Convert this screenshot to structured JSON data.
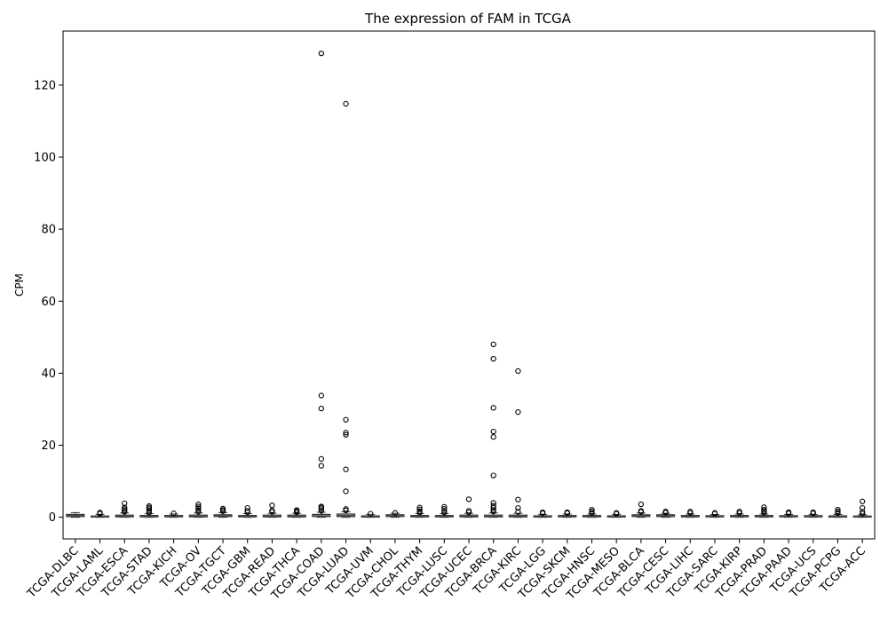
{
  "chart_data": {
    "type": "box",
    "title": "The expression of FAM in TCGA",
    "xlabel": "",
    "ylabel": "CPM",
    "ylim": [
      -6,
      135
    ],
    "yticks": [
      0,
      20,
      40,
      60,
      80,
      100,
      120
    ],
    "grid": false,
    "categories": [
      "TCGA-DLBC",
      "TCGA-LAML",
      "TCGA-ESCA",
      "TCGA-STAD",
      "TCGA-KICH",
      "TCGA-OV",
      "TCGA-TGCT",
      "TCGA-GBM",
      "TCGA-READ",
      "TCGA-THCA",
      "TCGA-COAD",
      "TCGA-LUAD",
      "TCGA-UVM",
      "TCGA-CHOL",
      "TCGA-THYM",
      "TCGA-LUSC",
      "TCGA-UCEC",
      "TCGA-BRCA",
      "TCGA-KIRC",
      "TCGA-LGG",
      "TCGA-SKCM",
      "TCGA-HNSC",
      "TCGA-MESO",
      "TCGA-BLCA",
      "TCGA-CESC",
      "TCGA-LIHC",
      "TCGA-SARC",
      "TCGA-KIRP",
      "TCGA-PRAD",
      "TCGA-PAAD",
      "TCGA-UCS",
      "TCGA-PCPG",
      "TCGA-ACC"
    ],
    "boxes": [
      {
        "q1": 0.2,
        "median": 0.5,
        "q3": 0.8,
        "whisker_low": 0.0,
        "whisker_high": 1.3,
        "outliers": []
      },
      {
        "q1": 0.05,
        "median": 0.15,
        "q3": 0.35,
        "whisker_low": 0.0,
        "whisker_high": 0.8,
        "outliers": [
          1.0,
          1.3
        ]
      },
      {
        "q1": 0.1,
        "median": 0.3,
        "q3": 0.6,
        "whisker_low": 0.0,
        "whisker_high": 1.2,
        "outliers": [
          1.5,
          1.9,
          2.3,
          2.7,
          3.9
        ]
      },
      {
        "q1": 0.1,
        "median": 0.25,
        "q3": 0.5,
        "whisker_low": 0.0,
        "whisker_high": 1.0,
        "outliers": [
          1.3,
          1.8,
          2.3,
          2.7,
          3.1
        ]
      },
      {
        "q1": 0.1,
        "median": 0.3,
        "q3": 0.5,
        "whisker_low": 0.0,
        "whisker_high": 0.9,
        "outliers": [
          1.1
        ]
      },
      {
        "q1": 0.1,
        "median": 0.3,
        "q3": 0.6,
        "whisker_low": 0.0,
        "whisker_high": 1.2,
        "outliers": [
          1.5,
          2.0,
          2.5,
          3.0,
          3.6
        ]
      },
      {
        "q1": 0.2,
        "median": 0.4,
        "q3": 0.7,
        "whisker_low": 0.0,
        "whisker_high": 1.3,
        "outliers": [
          1.7,
          2.0,
          2.4
        ]
      },
      {
        "q1": 0.1,
        "median": 0.3,
        "q3": 0.5,
        "whisker_low": 0.0,
        "whisker_high": 1.0,
        "outliers": [
          1.4,
          1.8,
          2.6
        ]
      },
      {
        "q1": 0.1,
        "median": 0.3,
        "q3": 0.6,
        "whisker_low": 0.0,
        "whisker_high": 1.1,
        "outliers": [
          1.5,
          1.9,
          3.3
        ]
      },
      {
        "q1": 0.1,
        "median": 0.3,
        "q3": 0.6,
        "whisker_low": 0.0,
        "whisker_high": 1.1,
        "outliers": [
          1.4,
          1.7,
          2.0
        ]
      },
      {
        "q1": 0.2,
        "median": 0.4,
        "q3": 0.8,
        "whisker_low": 0.0,
        "whisker_high": 1.4,
        "outliers": [
          1.8,
          2.3,
          2.7,
          3.0,
          14.3,
          16.2,
          30.2,
          33.8,
          128.8
        ]
      },
      {
        "q1": 0.2,
        "median": 0.5,
        "q3": 0.9,
        "whisker_low": 0.0,
        "whisker_high": 1.5,
        "outliers": [
          1.9,
          2.3,
          7.2,
          13.3,
          22.9,
          23.5,
          27.1,
          114.8
        ]
      },
      {
        "q1": 0.05,
        "median": 0.2,
        "q3": 0.4,
        "whisker_low": 0.0,
        "whisker_high": 0.8,
        "outliers": [
          1.0
        ]
      },
      {
        "q1": 0.2,
        "median": 0.4,
        "q3": 0.7,
        "whisker_low": 0.0,
        "whisker_high": 1.1,
        "outliers": [
          1.2
        ]
      },
      {
        "q1": 0.1,
        "median": 0.3,
        "q3": 0.5,
        "whisker_low": 0.0,
        "whisker_high": 1.0,
        "outliers": [
          1.3,
          1.7,
          2.2,
          2.7
        ]
      },
      {
        "q1": 0.1,
        "median": 0.3,
        "q3": 0.5,
        "whisker_low": 0.0,
        "whisker_high": 1.0,
        "outliers": [
          1.3,
          1.8,
          2.3,
          2.9
        ]
      },
      {
        "q1": 0.1,
        "median": 0.3,
        "q3": 0.6,
        "whisker_low": 0.0,
        "whisker_high": 1.1,
        "outliers": [
          1.4,
          1.8,
          5.0
        ]
      },
      {
        "q1": 0.1,
        "median": 0.3,
        "q3": 0.6,
        "whisker_low": 0.0,
        "whisker_high": 1.2,
        "outliers": [
          1.6,
          2.0,
          2.6,
          3.2,
          4.0,
          11.6,
          22.3,
          23.8,
          30.4,
          44.0,
          48.0
        ]
      },
      {
        "q1": 0.1,
        "median": 0.3,
        "q3": 0.6,
        "whisker_low": 0.0,
        "whisker_high": 1.1,
        "outliers": [
          1.5,
          2.6,
          4.9,
          29.2,
          40.6
        ]
      },
      {
        "q1": 0.05,
        "median": 0.2,
        "q3": 0.4,
        "whisker_low": 0.0,
        "whisker_high": 0.8,
        "outliers": [
          1.1,
          1.4
        ]
      },
      {
        "q1": 0.1,
        "median": 0.3,
        "q3": 0.5,
        "whisker_low": 0.0,
        "whisker_high": 0.9,
        "outliers": [
          1.2,
          1.4
        ]
      },
      {
        "q1": 0.1,
        "median": 0.25,
        "q3": 0.5,
        "whisker_low": 0.0,
        "whisker_high": 0.9,
        "outliers": [
          1.2,
          1.6,
          2.1
        ]
      },
      {
        "q1": 0.05,
        "median": 0.2,
        "q3": 0.4,
        "whisker_low": 0.0,
        "whisker_high": 0.8,
        "outliers": [
          1.0,
          1.2
        ]
      },
      {
        "q1": 0.2,
        "median": 0.4,
        "q3": 0.7,
        "whisker_low": 0.0,
        "whisker_high": 1.2,
        "outliers": [
          1.5,
          1.8,
          3.6
        ]
      },
      {
        "q1": 0.2,
        "median": 0.4,
        "q3": 0.7,
        "whisker_low": 0.0,
        "whisker_high": 1.1,
        "outliers": [
          1.3,
          1.6
        ]
      },
      {
        "q1": 0.1,
        "median": 0.25,
        "q3": 0.5,
        "whisker_low": 0.0,
        "whisker_high": 0.9,
        "outliers": [
          1.2,
          1.6
        ]
      },
      {
        "q1": 0.1,
        "median": 0.25,
        "q3": 0.45,
        "whisker_low": 0.0,
        "whisker_high": 0.8,
        "outliers": [
          1.0,
          1.2
        ]
      },
      {
        "q1": 0.1,
        "median": 0.25,
        "q3": 0.5,
        "whisker_low": 0.0,
        "whisker_high": 0.9,
        "outliers": [
          1.2,
          1.6
        ]
      },
      {
        "q1": 0.1,
        "median": 0.25,
        "q3": 0.5,
        "whisker_low": 0.0,
        "whisker_high": 0.9,
        "outliers": [
          1.3,
          1.7,
          2.1,
          2.8
        ]
      },
      {
        "q1": 0.1,
        "median": 0.25,
        "q3": 0.45,
        "whisker_low": 0.0,
        "whisker_high": 0.8,
        "outliers": [
          1.1,
          1.4
        ]
      },
      {
        "q1": 0.1,
        "median": 0.25,
        "q3": 0.45,
        "whisker_low": 0.0,
        "whisker_high": 0.8,
        "outliers": [
          1.1,
          1.4
        ]
      },
      {
        "q1": 0.05,
        "median": 0.2,
        "q3": 0.4,
        "whisker_low": 0.0,
        "whisker_high": 0.8,
        "outliers": [
          1.2,
          1.6,
          2.1
        ]
      },
      {
        "q1": 0.05,
        "median": 0.15,
        "q3": 0.35,
        "whisker_low": 0.0,
        "whisker_high": 0.7,
        "outliers": [
          1.0,
          1.5,
          2.6,
          4.4
        ]
      }
    ],
    "colors": {
      "box_edge": "#333333",
      "median": "#4a4a4a",
      "outlier_edge": "#000000",
      "axis": "#000000"
    }
  }
}
